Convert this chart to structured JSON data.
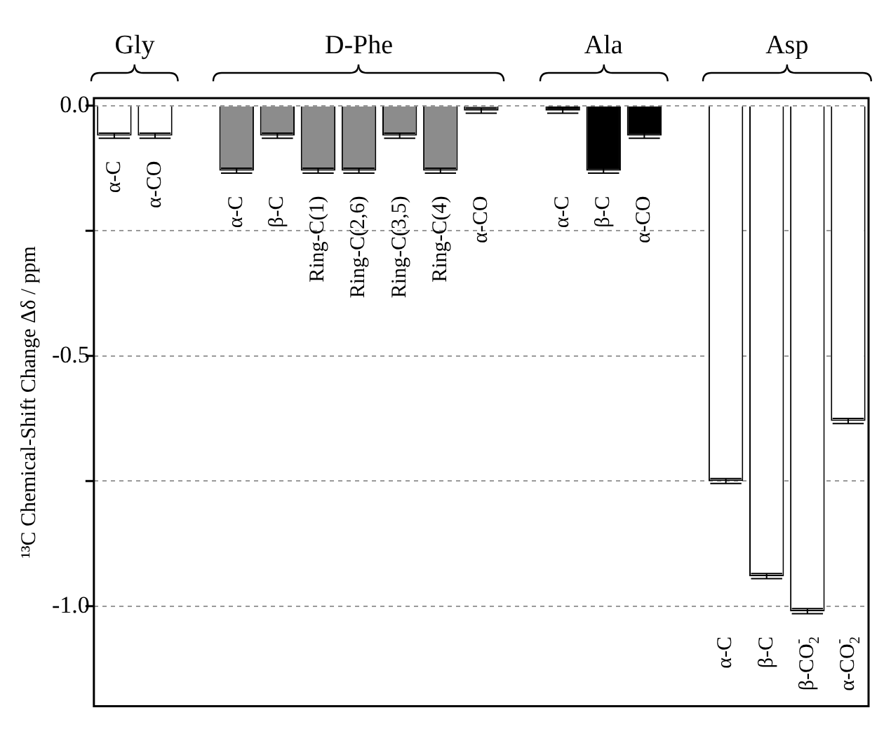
{
  "chart_data": {
    "type": "bar",
    "ylabel": "¹³C Chemical-Shift Change Δδ / ppm",
    "categories": [
      "α-C",
      "α-CO",
      null,
      "α-C",
      "β-C",
      "Ring-C(1)",
      "Ring-C(2,6)",
      "Ring-C(3,5)",
      "Ring-C(4)",
      "α-CO",
      null,
      "α-C",
      "β-C",
      "α-CO",
      null,
      "α-C",
      "β-C",
      "β-CO$_{2}$$^{-}$",
      "α-CO$_{2}$$^{-}$"
    ],
    "series": [
      {
        "name": "Gly",
        "color": "#ffffff",
        "values": [
          -0.06,
          -0.06,
          null,
          null,
          null,
          null,
          null,
          null,
          null,
          null,
          null,
          null,
          null,
          null,
          null,
          null,
          null,
          null,
          null
        ],
        "errors": [
          0.005,
          0.005,
          null,
          null,
          null,
          null,
          null,
          null,
          null,
          null,
          null,
          null,
          null,
          null,
          null,
          null,
          null,
          null,
          null
        ]
      },
      {
        "name": "D-Phe",
        "color": "#8c8c8c",
        "values": [
          null,
          null,
          null,
          -0.13,
          -0.06,
          -0.13,
          -0.13,
          -0.06,
          -0.13,
          -0.01,
          null,
          null,
          null,
          null,
          null,
          null,
          null,
          null,
          null
        ],
        "errors": [
          null,
          null,
          null,
          0.005,
          0.005,
          0.005,
          0.005,
          0.005,
          0.005,
          0.005,
          null,
          null,
          null,
          null,
          null,
          null,
          null,
          null,
          null
        ]
      },
      {
        "name": "Ala",
        "color": "#000000",
        "values": [
          null,
          null,
          null,
          null,
          null,
          null,
          null,
          null,
          null,
          null,
          null,
          -0.01,
          -0.13,
          -0.06,
          null,
          null,
          null,
          null,
          null
        ],
        "errors": [
          null,
          null,
          null,
          null,
          null,
          null,
          null,
          null,
          null,
          null,
          null,
          0.005,
          0.005,
          0.005,
          null,
          null,
          null,
          null,
          null
        ]
      },
      {
        "name": "Asp",
        "color": "#ffffff",
        "values": [
          null,
          null,
          null,
          null,
          null,
          null,
          null,
          null,
          null,
          null,
          null,
          null,
          null,
          null,
          null,
          -0.75,
          -0.94,
          -1.01,
          -0.63
        ],
        "errors": [
          null,
          null,
          null,
          null,
          null,
          null,
          null,
          null,
          null,
          null,
          null,
          null,
          null,
          null,
          null,
          0.005,
          0.005,
          0.005,
          0.005
        ]
      }
    ],
    "ylim": [
      -1.2,
      0.015
    ],
    "yticks": [
      {
        "value": 0,
        "label": "0.0"
      },
      {
        "value": -0.25,
        "label": null
      },
      {
        "value": -0.5,
        "label": "-0.5"
      },
      {
        "value": -0.75,
        "label": null
      },
      {
        "value": -1,
        "label": "-1.0"
      }
    ],
    "grid": "y",
    "line_style": "dashed"
  }
}
